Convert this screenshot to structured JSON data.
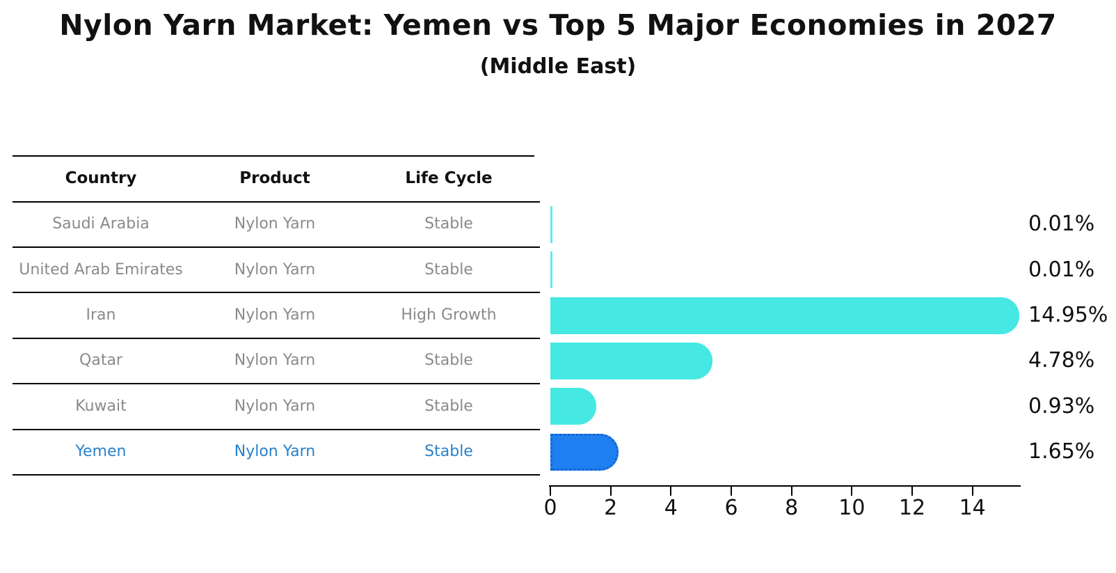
{
  "title": "Nylon Yarn Market: Yemen vs Top 5 Major Economies in 2027",
  "subtitle": "(Middle East)",
  "table": {
    "headers": [
      "Country",
      "Product",
      "Life Cycle"
    ],
    "rows": [
      {
        "country": "Saudi Arabia",
        "product": "Nylon Yarn",
        "life_cycle": "Stable",
        "highlight": false
      },
      {
        "country": "United Arab Emirates",
        "product": "Nylon Yarn",
        "life_cycle": "Stable",
        "highlight": false
      },
      {
        "country": "Iran",
        "product": "Nylon Yarn",
        "life_cycle": "High Growth",
        "highlight": false
      },
      {
        "country": "Qatar",
        "product": "Nylon Yarn",
        "life_cycle": "Stable",
        "highlight": false
      },
      {
        "country": "Kuwait",
        "product": "Nylon Yarn",
        "life_cycle": "Stable",
        "highlight": false
      },
      {
        "country": "Yemen",
        "product": "Nylon Yarn",
        "life_cycle": "Stable",
        "highlight": true
      }
    ]
  },
  "chart_data": {
    "type": "bar",
    "orientation": "horizontal",
    "title": "Nylon Yarn Market: Yemen vs Top 5 Major Economies in 2027",
    "subtitle": "(Middle East)",
    "categories": [
      "Saudi Arabia",
      "United Arab Emirates",
      "Iran",
      "Qatar",
      "Kuwait",
      "Yemen"
    ],
    "values": [
      0.01,
      0.01,
      14.95,
      4.78,
      0.93,
      1.65
    ],
    "value_labels": [
      "0.01%",
      "0.01%",
      "14.95%",
      "4.78%",
      "0.93%",
      "1.65%"
    ],
    "unit": "%",
    "x_ticks": [
      0,
      2,
      4,
      6,
      8,
      10,
      12,
      14
    ],
    "xlim": [
      0,
      15.6
    ],
    "grid": false,
    "legend": null,
    "highlight_index": 5,
    "colors": {
      "bar": "#45E8E2",
      "highlight_bar": "#1E80F0",
      "highlight_border": "#1563D2",
      "highlight_text": "#2980C9",
      "row_text": "#8A8A8A",
      "header_text": "#111111",
      "axis": "#000000",
      "value_label": "#111111"
    }
  }
}
